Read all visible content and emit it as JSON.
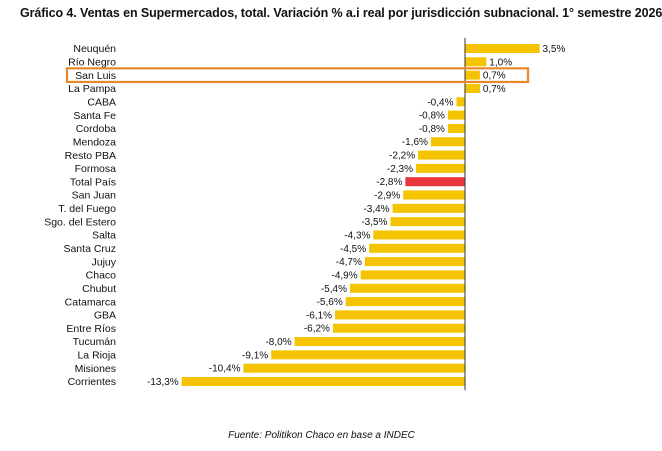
{
  "chart_data": {
    "type": "bar",
    "orientation": "horizontal",
    "title": "Gráfico 4. Ventas en Supermercados, total. Variación % a.i real por jurisdicción subnacional. 1° semestre 2026",
    "source": "Fuente: Politikon Chaco en base a INDEC",
    "categories": [
      "Neuquén",
      "Río Negro",
      "San Luis",
      "La Pampa",
      "CABA",
      "Santa Fe",
      "Cordoba",
      "Mendoza",
      "Resto PBA",
      "Formosa",
      "Total País",
      "San Juan",
      "T. del Fuego",
      "Sgo. del Estero",
      "Salta",
      "Santa Cruz",
      "Jujuy",
      "Chaco",
      "Chubut",
      "Catamarca",
      "GBA",
      "Entre Ríos",
      "Tucumán",
      "La Rioja",
      "Misiones",
      "Corrientes"
    ],
    "values": [
      3.5,
      1.0,
      0.7,
      0.7,
      -0.4,
      -0.8,
      -0.8,
      -1.6,
      -2.2,
      -2.3,
      -2.8,
      -2.9,
      -3.4,
      -3.5,
      -4.3,
      -4.5,
      -4.7,
      -4.9,
      -5.4,
      -5.6,
      -6.1,
      -6.2,
      -8.0,
      -9.1,
      -10.4,
      -13.3
    ],
    "value_labels": [
      "3,5%",
      "1,0%",
      "0,7%",
      "0,7%",
      "-0,4%",
      "-0,8%",
      "-0,8%",
      "-1,6%",
      "-2,2%",
      "-2,3%",
      "-2,8%",
      "-2,9%",
      "-3,4%",
      "-3,5%",
      "-4,3%",
      "-4,5%",
      "-4,7%",
      "-4,9%",
      "-5,4%",
      "-5,6%",
      "-6,1%",
      "-6,2%",
      "-8,0%",
      "-9,1%",
      "-10,4%",
      "-13,3%"
    ],
    "highlight_category": "Total País",
    "boxed_category": "San Luis",
    "xlim": [
      -14,
      4
    ],
    "grid": false,
    "colors": {
      "bar": "#f5c400",
      "highlight_bar": "#e8343a",
      "box_outline": "#e8882a",
      "axis_line": "#333333"
    }
  }
}
